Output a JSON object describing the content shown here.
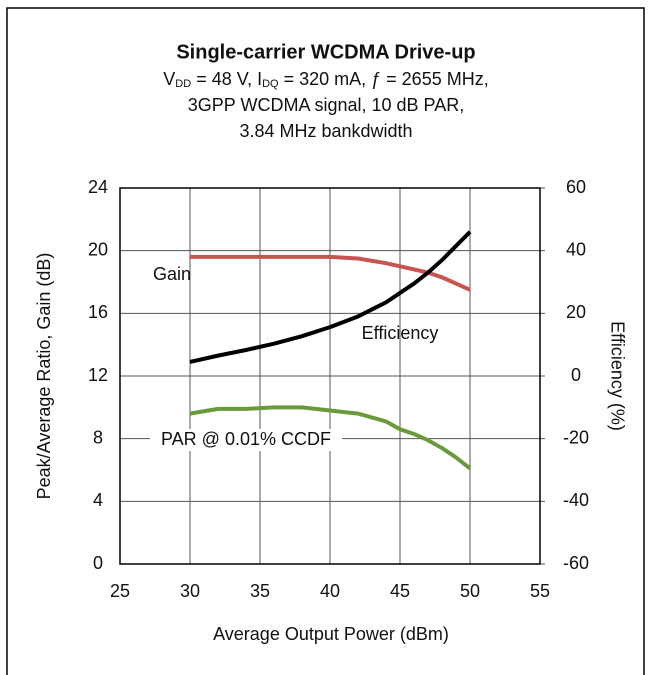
{
  "chart_data": {
    "type": "line",
    "title": "Single-carrier WCDMA Drive-up",
    "subtitle_line1": [
      "V",
      "DD",
      " = 48 V, I",
      "DQ",
      " = 320 mA, ƒ = 2655 MHz,"
    ],
    "subtitle_line2": "3GPP WCDMA signal, 10 dB PAR,",
    "subtitle_line3": "3.84 MHz bankdwidth",
    "xlabel": "Average Output Power (dBm)",
    "ylabel": "Peak/Average Ratio, Gain (dB)",
    "y2label": "Efficiency (%)",
    "x": [
      30,
      32,
      34,
      36,
      38,
      40,
      42,
      44,
      45,
      46,
      47,
      48,
      49,
      50
    ],
    "xlim": [
      25,
      55
    ],
    "xticks": [
      25,
      30,
      35,
      40,
      45,
      50,
      55
    ],
    "ylim": [
      0,
      24
    ],
    "yticks": [
      0,
      4,
      8,
      12,
      16,
      20,
      24
    ],
    "y2lim": [
      -60,
      60
    ],
    "y2ticks": [
      -60,
      -40,
      -20,
      0,
      20,
      40,
      60
    ],
    "grid": true,
    "series": [
      {
        "name": "Gain",
        "color": "#c9534f",
        "values": [
          19.6,
          19.6,
          19.6,
          19.6,
          19.6,
          19.6,
          19.5,
          19.2,
          19.0,
          18.8,
          18.6,
          18.3,
          17.9,
          17.5
        ]
      },
      {
        "name": "Efficiency",
        "color": "#000000",
        "axis": "y2",
        "values": [
          4.5,
          6.5,
          8.3,
          10.3,
          12.7,
          15.6,
          19,
          23.5,
          26.5,
          29.5,
          33,
          37,
          41.5,
          46
        ]
      },
      {
        "name": "PAR @ 0.01% CCDF",
        "color": "#6a9a3a",
        "values": [
          9.6,
          9.9,
          9.9,
          10.0,
          10.0,
          9.8,
          9.6,
          9.1,
          8.6,
          8.3,
          7.9,
          7.4,
          6.8,
          6.1
        ]
      }
    ]
  }
}
